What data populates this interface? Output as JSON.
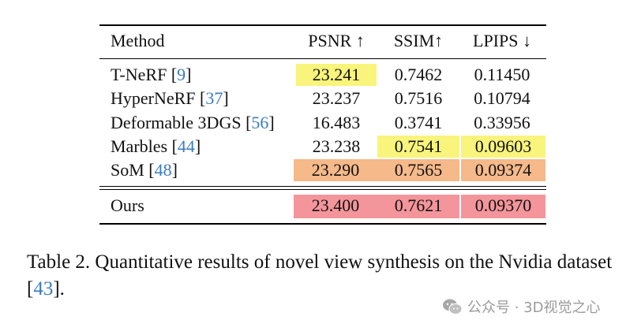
{
  "table": {
    "header": [
      "Method",
      "PSNR ↑",
      "SSIM↑",
      "LPIPS ↓"
    ],
    "rows": [
      {
        "method": "T-NeRF",
        "ref": "9",
        "psnr": "23.241",
        "ssim": "0.7462",
        "lpips": "0.11450"
      },
      {
        "method": "HyperNeRF",
        "ref": "37",
        "psnr": "23.237",
        "ssim": "0.7516",
        "lpips": "0.10794"
      },
      {
        "method": "Deformable 3DGS",
        "ref": "56",
        "psnr": "16.483",
        "ssim": "0.3741",
        "lpips": "0.33956"
      },
      {
        "method": "Marbles",
        "ref": "44",
        "psnr": "23.238",
        "ssim": "0.7541",
        "lpips": "0.09603"
      },
      {
        "method": "SoM",
        "ref": "48",
        "psnr": "23.290",
        "ssim": "0.7565",
        "lpips": "0.09374"
      }
    ],
    "ours": {
      "method": "Ours",
      "psnr": "23.400",
      "ssim": "0.7621",
      "lpips": "0.09370"
    }
  },
  "highlight_colors": {
    "first": "#f4959b",
    "second": "#f5b98a",
    "third": "#f8f47c"
  },
  "ref_color": "#3a7cc0",
  "caption": {
    "text_before": "Table 2. Quantitative results of novel view synthesis on the Nvidia dataset [",
    "ref": "43",
    "text_after": "]."
  },
  "watermark": {
    "text": "公众号 · 3D视觉之心",
    "icon": "wechat-icon"
  }
}
